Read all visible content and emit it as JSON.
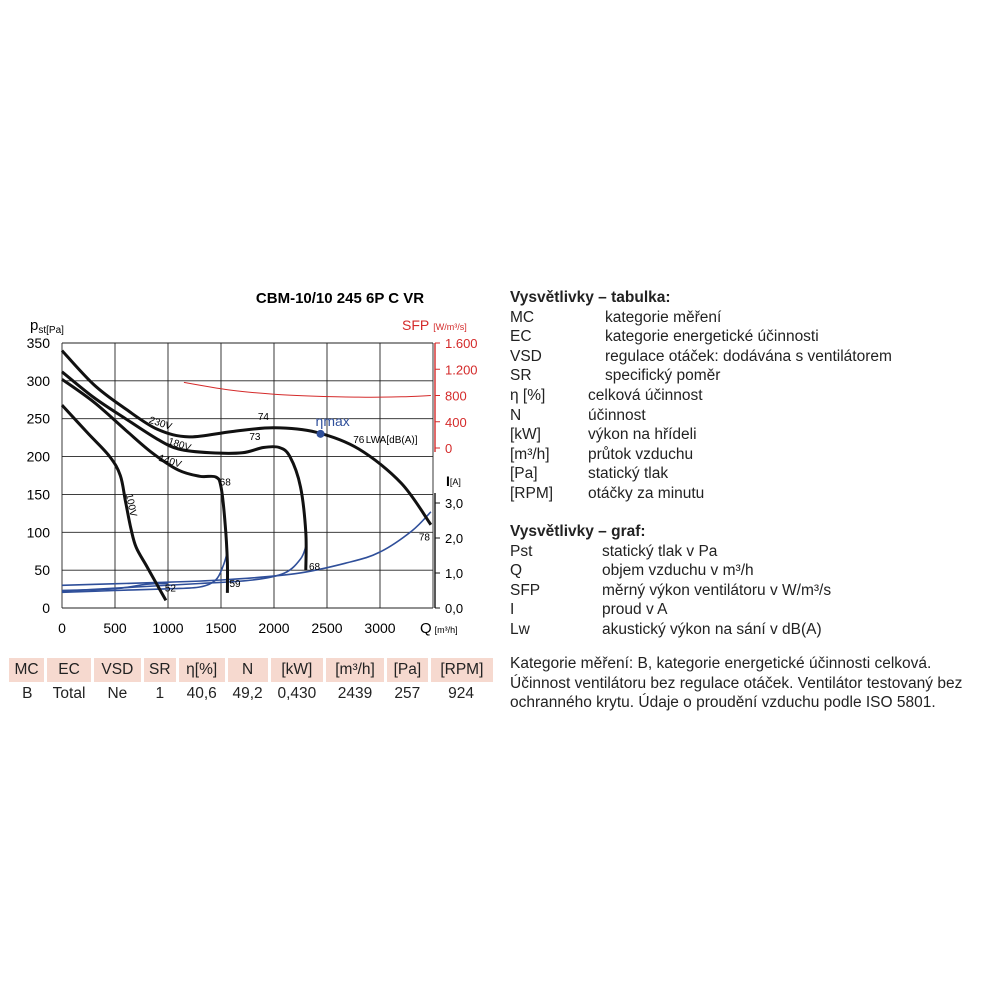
{
  "chart_data": {
    "type": "line",
    "title": "CBM-10/10 245 6P C VR",
    "xlabel": "Q",
    "xunit": "[m³/h]",
    "ylabel_left": "p",
    "ylabel_left_sub": "st[Pa]",
    "ylabel_sfp": "SFP",
    "ylabel_sfp_unit": "[W/m³/s]",
    "ylabel_current": "I",
    "ylabel_current_unit": "[A]",
    "xlim": [
      0,
      3500
    ],
    "ylim": [
      0,
      350
    ],
    "sfp_lim": [
      0,
      1600
    ],
    "current_lim": [
      0,
      3.5
    ],
    "grid": true,
    "x_ticks": [
      "0",
      "500",
      "1000",
      "1500",
      "2000",
      "2500",
      "3000"
    ],
    "x_tick_values": [
      0,
      500,
      1000,
      1500,
      2000,
      2500,
      3000
    ],
    "y_ticks": [
      "0",
      "50",
      "100",
      "150",
      "200",
      "250",
      "300",
      "350"
    ],
    "y_tick_values": [
      0,
      50,
      100,
      150,
      200,
      250,
      300,
      350
    ],
    "sfp_ticks": [
      "0",
      "400",
      "800",
      "1.200",
      "1.600"
    ],
    "sfp_tick_values": [
      0,
      400,
      800,
      1200,
      1600
    ],
    "current_ticks": [
      "0,0",
      "1,0",
      "2,0",
      "3,0"
    ],
    "current_tick_values": [
      0,
      1,
      2,
      3
    ],
    "pressure_curves": [
      {
        "name": "230V",
        "label_x": 920,
        "label_y": 240,
        "end_label": "78",
        "points": [
          [
            0,
            340
          ],
          [
            300,
            295
          ],
          [
            600,
            263
          ],
          [
            900,
            236
          ],
          [
            1200,
            226
          ],
          [
            1600,
            233
          ],
          [
            2000,
            238
          ],
          [
            2400,
            232
          ],
          [
            2800,
            210
          ],
          [
            3200,
            165
          ],
          [
            3480,
            110
          ]
        ]
      },
      {
        "name": "180V",
        "label_x": 1100,
        "label_y": 212,
        "points": [
          [
            0,
            312
          ],
          [
            300,
            278
          ],
          [
            600,
            250
          ],
          [
            900,
            223
          ],
          [
            1100,
            210
          ],
          [
            1400,
            205
          ],
          [
            1700,
            205
          ],
          [
            1900,
            212
          ],
          [
            2050,
            212
          ],
          [
            2150,
            200
          ],
          [
            2250,
            160
          ],
          [
            2300,
            100
          ],
          [
            2300,
            50
          ]
        ],
        "end_label": "68",
        "end_label_x": 2330,
        "end_label_y": 50
      },
      {
        "name": "140V",
        "label_x": 1010,
        "label_y": 190,
        "points": [
          [
            0,
            302
          ],
          [
            300,
            272
          ],
          [
            600,
            235
          ],
          [
            850,
            205
          ],
          [
            1100,
            182
          ],
          [
            1300,
            174
          ],
          [
            1450,
            173
          ],
          [
            1500,
            160
          ],
          [
            1540,
            110
          ],
          [
            1560,
            60
          ],
          [
            1560,
            20
          ]
        ],
        "end_label": "59",
        "end_label_x": 1580,
        "end_label_y": 28
      },
      {
        "name": "100V",
        "label_x": 625,
        "label_y": 135,
        "points": [
          [
            0,
            268
          ],
          [
            250,
            230
          ],
          [
            450,
            200
          ],
          [
            550,
            175
          ],
          [
            600,
            140
          ],
          [
            650,
            105
          ],
          [
            700,
            80
          ],
          [
            800,
            55
          ],
          [
            900,
            30
          ],
          [
            980,
            10
          ]
        ],
        "end_label": "52",
        "end_label_x": 970,
        "end_label_y": 22
      }
    ],
    "sfp_curve": {
      "points": [
        [
          1150,
          1000
        ],
        [
          1600,
          880
        ],
        [
          2000,
          820
        ],
        [
          2400,
          790
        ],
        [
          2800,
          775
        ],
        [
          3200,
          780
        ],
        [
          3480,
          800
        ]
      ]
    },
    "current_curves": [
      {
        "points": [
          [
            0,
            0.65
          ],
          [
            800,
            0.72
          ],
          [
            1500,
            0.8
          ],
          [
            2200,
            0.98
          ],
          [
            2700,
            1.3
          ],
          [
            3000,
            1.6
          ],
          [
            3300,
            2.2
          ],
          [
            3480,
            2.75
          ]
        ]
      },
      {
        "points": [
          [
            0,
            0.48
          ],
          [
            700,
            0.6
          ],
          [
            1300,
            0.7
          ],
          [
            1800,
            0.8
          ],
          [
            2100,
            1.0
          ],
          [
            2250,
            1.4
          ],
          [
            2300,
            1.75
          ]
        ]
      },
      {
        "points": [
          [
            0,
            0.45
          ],
          [
            500,
            0.5
          ],
          [
            1000,
            0.55
          ],
          [
            1300,
            0.6
          ],
          [
            1450,
            0.8
          ],
          [
            1520,
            1.2
          ],
          [
            1560,
            1.6
          ]
        ]
      },
      {
        "points": [
          [
            0,
            0.5
          ],
          [
            500,
            0.55
          ],
          [
            800,
            0.68
          ],
          [
            1000,
            0.7
          ]
        ]
      }
    ],
    "efficiency_labels": [
      {
        "text": "74",
        "x": 1900,
        "y": 248
      },
      {
        "text": "73",
        "x": 1820,
        "y": 222
      },
      {
        "text": "68",
        "x": 1540,
        "y": 162
      },
      {
        "text": "76",
        "x": 2800,
        "y": 218
      }
    ],
    "lwa_label": "LWA[dB(A)]",
    "eta_max_label": "ηmax",
    "eta_max_point": {
      "x": 2439,
      "y": 230
    }
  },
  "table": {
    "headers": [
      "MC",
      "EC",
      "VSD",
      "SR",
      "η[%]",
      "N",
      "[kW]",
      "[m³/h]",
      "[Pa]",
      "[RPM]"
    ],
    "values": [
      "B",
      "Total",
      "Ne",
      "1",
      "40,6",
      "49,2",
      "0,430",
      "2439",
      "257",
      "924"
    ]
  },
  "legend_table": {
    "title": "Vysvětlivky – tabulka:",
    "items": [
      {
        "key": "MC",
        "value": "kategorie měření"
      },
      {
        "key": "EC",
        "value": "kategorie energetické účinnosti"
      },
      {
        "key": "VSD",
        "value": "regulace otáček: dodávána s ventilátorem"
      },
      {
        "key": "SR",
        "value": "specifický poměr"
      },
      {
        "key": "η [%]",
        "value": "celková účinnost"
      },
      {
        "key": "N",
        "value": "účinnost"
      },
      {
        "key": "[kW]",
        "value": "výkon na hřídeli"
      },
      {
        "key": "[m³/h]",
        "value": "průtok vzduchu"
      },
      {
        "key": "[Pa]",
        "value": "statický tlak"
      },
      {
        "key": "[RPM]",
        "value": "otáčky za minutu"
      }
    ]
  },
  "legend_graph": {
    "title": "Vysvětlivky – graf:",
    "items": [
      {
        "key": "Pst",
        "value": "statický tlak v Pa"
      },
      {
        "key": "Q",
        "value": "objem vzduchu v m³/h"
      },
      {
        "key": "SFP",
        "value": "měrný výkon ventilátoru v W/m³/s"
      },
      {
        "key": "I",
        "value": "proud v A"
      },
      {
        "key": "Lw",
        "value": "akustický výkon na sání v dB(A)"
      }
    ]
  },
  "note": "Kategorie měření: B, kategorie energetické účinnosti celková. Účinnost ventilátoru bez regulace otáček. Ventilátor testovaný bez ochranného krytu. Údaje o proudění vzduchu podle ISO 5801.",
  "colors": {
    "pressure": "#111111",
    "sfp": "#d42a2a",
    "current": "#2f4f9a",
    "header_bg": "#f6d9cf",
    "grid": "#222222"
  }
}
